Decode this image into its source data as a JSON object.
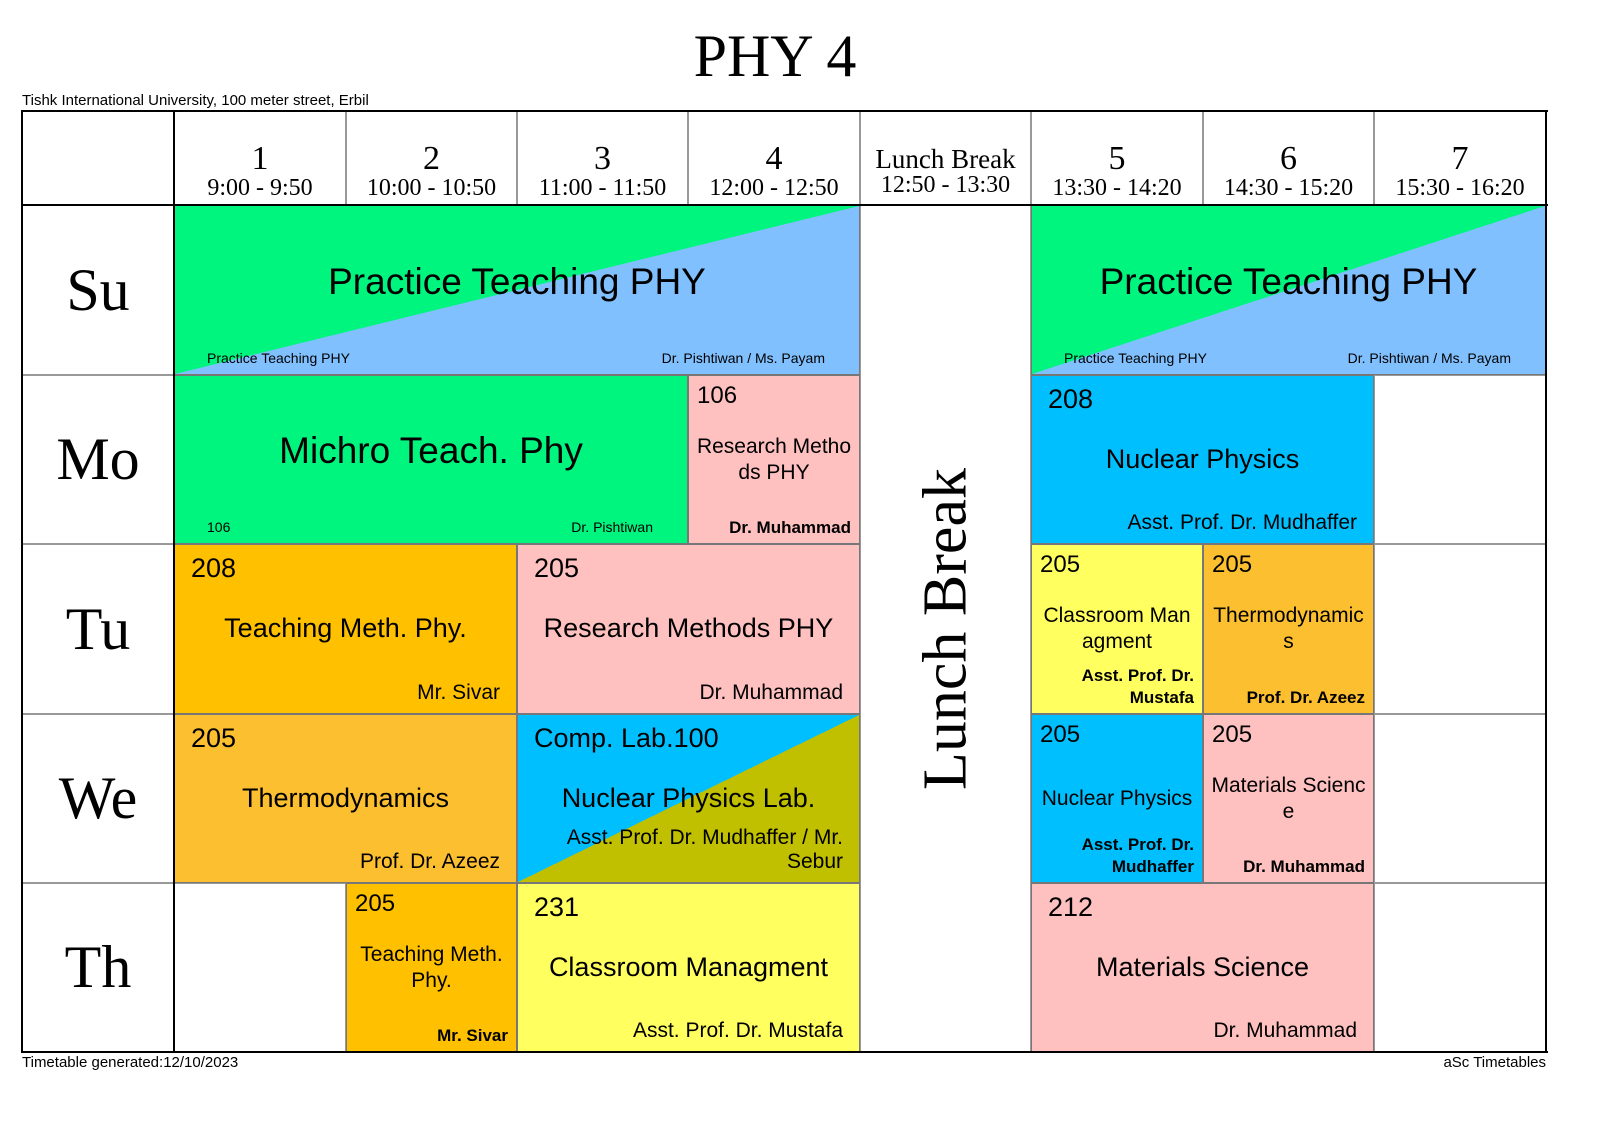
{
  "header": {
    "title": "PHY 4",
    "subtitle": "Tishk International University, 100 meter street, Erbil"
  },
  "periods": [
    {
      "number": 1,
      "time": "9:00 - 9:50"
    },
    {
      "number": 2,
      "time": "10:00 - 10:50"
    },
    {
      "number": 3,
      "time": "11:00 - 11:50"
    },
    {
      "number": 4,
      "time": "12:00 - 12:50"
    },
    {
      "number": 5,
      "time": "13:30 - 14:20"
    },
    {
      "number": 6,
      "time": "14:30 - 15:20"
    },
    {
      "number": 7,
      "time": "15:30 - 16:20"
    }
  ],
  "lunch": {
    "header": "Lunch Break",
    "time": "12:50 - 13:30",
    "banner": "Lunch Break"
  },
  "days": [
    {
      "name": "Su",
      "lessons": [
        {
          "subject": "Practice Teaching PHY",
          "note": "Practice Teaching PHY",
          "teacher": "Dr. Pishtiwan / Ms. Payam",
          "colors": [
            "#00f57f",
            "#80c0ff"
          ]
        },
        {
          "subject": "Practice Teaching PHY",
          "note": "Practice Teaching PHY",
          "teacher": "Dr. Pishtiwan / Ms. Payam",
          "colors": [
            "#00f57f",
            "#80c0ff"
          ]
        }
      ]
    },
    {
      "name": "Mo",
      "lessons": [
        {
          "subject": "Michro Teach. Phy",
          "note": "106",
          "teacher": "Dr. Pishtiwan",
          "colors": [
            "#00f57f"
          ]
        },
        {
          "room": "106",
          "subject": "Research Methods PHY",
          "teacher": "Dr. Muhammad",
          "colors": [
            "#ffc0c0"
          ]
        },
        {
          "room": "208",
          "subject": "Nuclear Physics",
          "teacher": "Asst. Prof. Dr. Mudhaffer",
          "colors": [
            "#00bfff"
          ]
        }
      ]
    },
    {
      "name": "Tu",
      "lessons": [
        {
          "room": "208",
          "subject": "Teaching Meth. Phy.",
          "teacher": "Mr. Sivar",
          "colors": [
            "#ffc000"
          ]
        },
        {
          "room": "205",
          "subject": "Research Methods PHY",
          "teacher": "Dr. Muhammad",
          "colors": [
            "#ffc0c0"
          ]
        },
        {
          "room": "205",
          "subject": "Classroom Managment",
          "teacher": "Asst. Prof. Dr. Mustafa",
          "colors": [
            "#ffff60"
          ]
        },
        {
          "room": "205",
          "subject": "Thermodynamics",
          "teacher": "Prof. Dr. Azeez",
          "colors": [
            "#fbbf30"
          ]
        }
      ]
    },
    {
      "name": "We",
      "lessons": [
        {
          "room": "205",
          "subject": "Thermodynamics",
          "teacher": "Prof. Dr. Azeez",
          "colors": [
            "#fbbf30"
          ]
        },
        {
          "room": "Comp. Lab.100",
          "subject": "Nuclear Physics Lab.",
          "teacher": "Asst. Prof. Dr. Mudhaffer / Mr. Sebur",
          "colors": [
            "#00bfff",
            "#c0c000"
          ]
        },
        {
          "room": "205",
          "subject": "Nuclear Physics",
          "teacher": "Asst. Prof. Dr. Mudhaffer",
          "colors": [
            "#00bfff"
          ]
        },
        {
          "room": "205",
          "subject": "Materials Science",
          "teacher": "Dr. Muhammad",
          "colors": [
            "#ffc0c0"
          ]
        }
      ]
    },
    {
      "name": "Th",
      "lessons": [
        {
          "room": "205",
          "subject": "Teaching Meth. Phy.",
          "teacher": "Mr. Sivar",
          "colors": [
            "#ffc000"
          ]
        },
        {
          "room": "231",
          "subject": "Classroom Managment",
          "teacher": "Asst. Prof. Dr. Mustafa",
          "colors": [
            "#ffff60"
          ]
        },
        {
          "room": "212",
          "subject": "Materials Science",
          "teacher": "Dr. Muhammad",
          "colors": [
            "#ffc0c0"
          ]
        }
      ]
    }
  ],
  "footer": {
    "generated": "Timetable generated:12/10/2023",
    "brand": "aSc Timetables"
  }
}
